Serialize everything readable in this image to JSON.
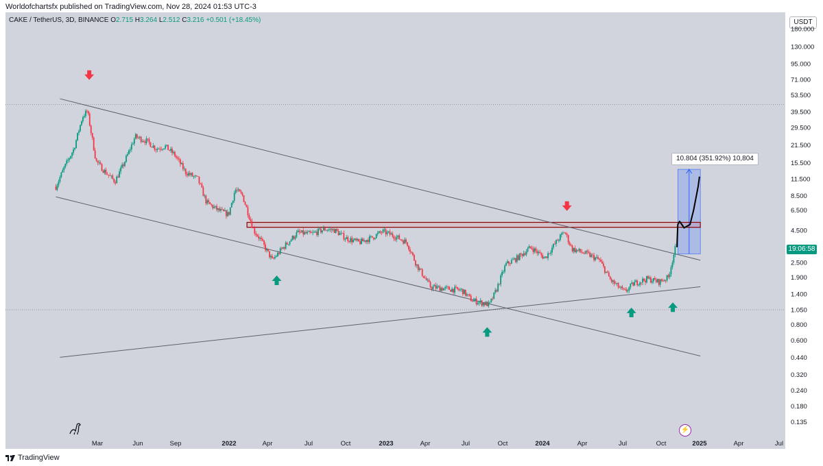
{
  "header": {
    "published": "Worldofchartsfx published on TradingView.com, Nov 28, 2024 01:53 UTC-3"
  },
  "legend": {
    "symbol": "CAKE / TetherUS, 3D, BINANCE",
    "o_label": "O",
    "o": "2.715",
    "h_label": "H",
    "h": "3.264",
    "l_label": "L",
    "l": "2.512",
    "c_label": "C",
    "c": "3.216",
    "change": "+0.501 (+18.45%)"
  },
  "currency_button": "USDT",
  "price_badge": "19:06:58",
  "measure_label": "10.804 (351.92%) 10,804",
  "footer": {
    "brand": "TradingView"
  },
  "colors": {
    "up": "#089981",
    "down": "#f23645",
    "background": "#d1d4dc",
    "zone": "#b2b5be",
    "projection": "#2962ff",
    "resistance": "#8b0000"
  },
  "icons": {
    "bolt": "bolt-icon",
    "dino": "dino-icon",
    "tv_logo": "tradingview-logo-icon",
    "arrow_down": "red-down-arrow-icon",
    "arrow_up": "green-up-arrow-icon"
  },
  "chart_data": {
    "type": "candlestick",
    "scale": "log",
    "ylim": [
      0.12,
      250
    ],
    "y_ticks": [
      "180.000",
      "130.000",
      "95.000",
      "71.000",
      "53.500",
      "39.500",
      "29.500",
      "21.500",
      "15.500",
      "11.500",
      "8.500",
      "6.500",
      "4.500",
      "2.500",
      "1.900",
      "1.400",
      "1.050",
      "0.800",
      "0.600",
      "0.440",
      "0.320",
      "0.240",
      "0.180",
      "0.135"
    ],
    "x_ticks": [
      "Mar",
      "Jun",
      "Sep",
      "2022",
      "Apr",
      "Jul",
      "Oct",
      "2023",
      "Apr",
      "Jul",
      "Oct",
      "2024",
      "Apr",
      "Jul",
      "Oct",
      "2025",
      "Apr",
      "Jul"
    ],
    "x_range": [
      "2021-02-01",
      "2025-08-01"
    ],
    "price_path": [
      [
        "2021-02-20",
        10.0
      ],
      [
        "2021-03-10",
        14.0
      ],
      [
        "2021-04-01",
        20.0
      ],
      [
        "2021-04-20",
        36.0
      ],
      [
        "2021-05-01",
        40.0
      ],
      [
        "2021-05-20",
        16.0
      ],
      [
        "2021-06-10",
        13.0
      ],
      [
        "2021-07-01",
        11.0
      ],
      [
        "2021-07-20",
        15.0
      ],
      [
        "2021-08-15",
        25.0
      ],
      [
        "2021-09-10",
        23.0
      ],
      [
        "2021-10-01",
        20.0
      ],
      [
        "2021-10-20",
        21.0
      ],
      [
        "2021-11-10",
        18.0
      ],
      [
        "2021-12-05",
        13.0
      ],
      [
        "2022-01-01",
        11.5
      ],
      [
        "2022-01-20",
        7.5
      ],
      [
        "2022-02-15",
        6.5
      ],
      [
        "2022-03-10",
        6.0
      ],
      [
        "2022-03-25",
        9.5
      ],
      [
        "2022-04-10",
        8.5
      ],
      [
        "2022-05-05",
        4.5
      ],
      [
        "2022-05-20",
        3.8
      ],
      [
        "2022-06-15",
        2.6
      ],
      [
        "2022-07-10",
        3.3
      ],
      [
        "2022-08-10",
        4.3
      ],
      [
        "2022-09-10",
        4.2
      ],
      [
        "2022-10-10",
        4.6
      ],
      [
        "2022-11-01",
        4.5
      ],
      [
        "2022-11-25",
        3.9
      ],
      [
        "2022-12-25",
        3.6
      ],
      [
        "2023-01-20",
        3.9
      ],
      [
        "2023-02-15",
        4.4
      ],
      [
        "2023-03-10",
        4.1
      ],
      [
        "2023-04-10",
        3.6
      ],
      [
        "2023-05-01",
        2.4
      ],
      [
        "2023-06-01",
        1.6
      ],
      [
        "2023-07-01",
        1.55
      ],
      [
        "2023-08-10",
        1.5
      ],
      [
        "2023-09-01",
        1.25
      ],
      [
        "2023-10-10",
        1.15
      ],
      [
        "2023-10-25",
        1.5
      ],
      [
        "2023-11-15",
        2.4
      ],
      [
        "2023-12-10",
        2.7
      ],
      [
        "2024-01-10",
        3.3
      ],
      [
        "2024-02-10",
        2.7
      ],
      [
        "2024-03-10",
        3.8
      ],
      [
        "2024-03-25",
        4.4
      ],
      [
        "2024-04-10",
        3.2
      ],
      [
        "2024-05-15",
        2.9
      ],
      [
        "2024-06-10",
        2.6
      ],
      [
        "2024-07-05",
        1.8
      ],
      [
        "2024-08-05",
        1.45
      ],
      [
        "2024-08-25",
        1.7
      ],
      [
        "2024-09-25",
        1.85
      ],
      [
        "2024-10-20",
        1.75
      ],
      [
        "2024-11-10",
        1.9
      ],
      [
        "2024-11-25",
        3.216
      ]
    ],
    "trendlines": [
      {
        "name": "channel-upper",
        "from": [
          "2021-03-01",
          50.0
        ],
        "to": [
          "2025-01-20",
          2.6
        ]
      },
      {
        "name": "channel-lower",
        "from": [
          "2021-02-20",
          8.3
        ],
        "to": [
          "2025-01-20",
          0.45
        ]
      },
      {
        "name": "rising-support",
        "from": [
          "2021-03-01",
          0.44
        ],
        "to": [
          "2025-01-20",
          1.6
        ]
      }
    ],
    "resistance_zone": {
      "from": "2022-04-20",
      "to": "2025-01-20",
      "low": 4.75,
      "high": 5.2
    },
    "horizontal_levels": [
      45.0,
      1.05
    ],
    "projection": {
      "from": "2024-12-01",
      "to": "2025-01-20",
      "low": 2.92,
      "high": 13.73
    },
    "projected_path": [
      [
        "2024-11-29",
        3.3
      ],
      [
        "2024-12-01",
        5.0
      ],
      [
        "2024-12-05",
        5.3
      ],
      [
        "2024-12-15",
        4.7
      ],
      [
        "2024-12-28",
        5.0
      ],
      [
        "2025-01-05",
        6.5
      ],
      [
        "2025-01-15",
        10.0
      ],
      [
        "2025-01-18",
        12.0
      ]
    ],
    "markers": [
      {
        "type": "down",
        "date": "2021-05-05",
        "price": 77.0
      },
      {
        "type": "up",
        "date": "2022-06-25",
        "price": 1.8
      },
      {
        "type": "up",
        "date": "2023-10-05",
        "price": 0.7
      },
      {
        "type": "down",
        "date": "2024-03-30",
        "price": 7.0
      },
      {
        "type": "up",
        "date": "2024-08-20",
        "price": 1.0
      },
      {
        "type": "up",
        "date": "2024-11-20",
        "price": 1.1
      }
    ]
  }
}
